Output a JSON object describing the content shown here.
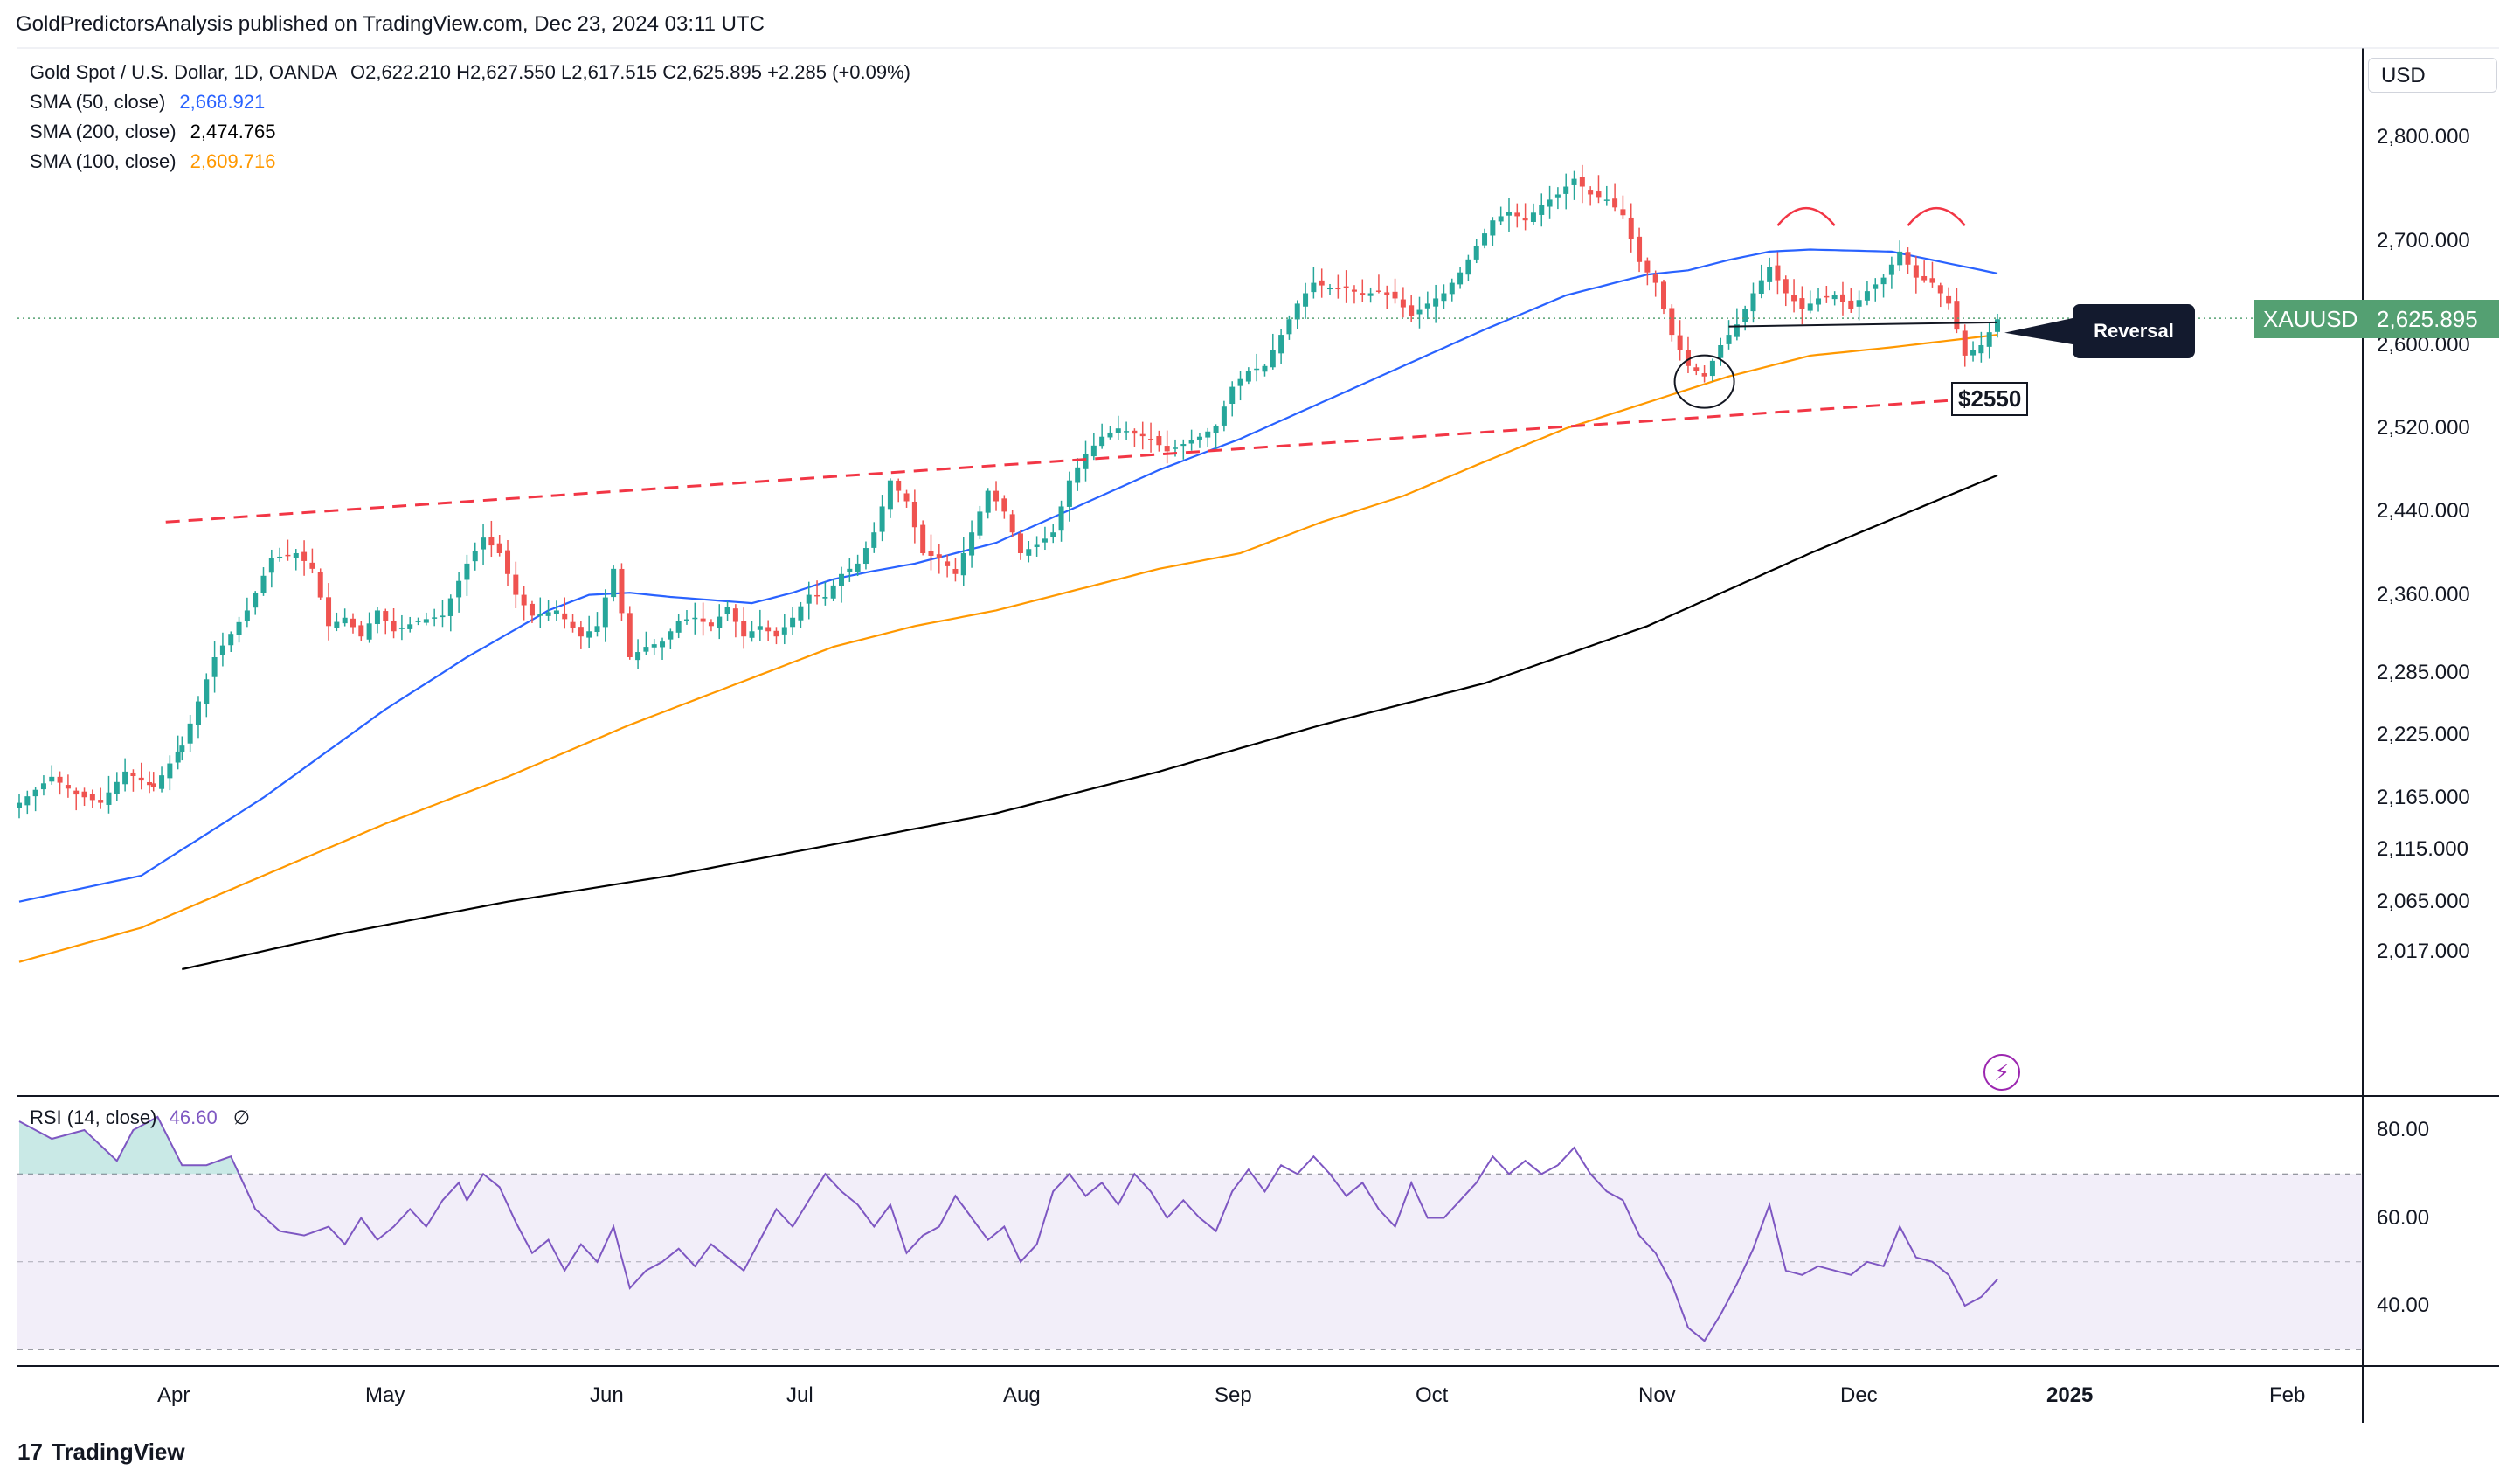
{
  "header": {
    "text": "GoldPredictorsAnalysis published on TradingView.com, Dec 23, 2024 03:11 UTC"
  },
  "footer": {
    "brand": "TradingView",
    "logo": "17"
  },
  "legend": {
    "symbol_line": "Gold Spot / U.S. Dollar, 1D, OANDA",
    "ohlc": "O2,622.210  H2,627.550  L2,617.515  C2,625.895  +2.285 (+0.09%)",
    "sma50_label": "SMA (50, close)",
    "sma50_value": "2,668.921",
    "sma200_label": "SMA (200, close)",
    "sma200_value": "2,474.765",
    "sma100_label": "SMA (100, close)",
    "sma100_value": "2,609.716"
  },
  "currency": "USD",
  "price_tag": {
    "symbol": "XAUUSD",
    "value": "2,625.895"
  },
  "annotations": {
    "reversal": "Reversal",
    "support": "$2550"
  },
  "rsi": {
    "label": "RSI (14, close)",
    "value": "46.60",
    "extra": "∅"
  },
  "colors": {
    "up": "#26a69a",
    "down": "#ef5350",
    "sma50": "#2962ff",
    "sma100": "#ff9800",
    "sma200": "#000000",
    "rsi": "#7e57c2",
    "trend": "#f23645"
  },
  "chart_data": {
    "type": "candlestick",
    "title": "Gold Spot / U.S. Dollar, 1D, OANDA",
    "price_axis": {
      "ticks": [
        "2,800.000",
        "2,700.000",
        "2,600.000",
        "2,520.000",
        "2,440.000",
        "2,360.000",
        "2,285.000",
        "2,225.000",
        "2,165.000",
        "2,115.000",
        "2,065.000",
        "2,017.000"
      ],
      "tick_values": [
        2800,
        2700,
        2600,
        2520,
        2440,
        2360,
        2285,
        2225,
        2165,
        2115,
        2065,
        2017
      ]
    },
    "time_axis": {
      "ticks": [
        "Apr",
        "May",
        "Jun",
        "Jul",
        "Aug",
        "Sep",
        "Oct",
        "Nov",
        "Dec",
        "2025",
        "Feb"
      ]
    },
    "rsi_axis": {
      "ticks": [
        "80.00",
        "60.00",
        "40.00"
      ],
      "tick_values": [
        80,
        60,
        40
      ],
      "band": [
        30,
        70
      ],
      "mid": 50
    },
    "close_anchors": [
      [
        0,
        2160
      ],
      [
        8,
        2185
      ],
      [
        14,
        2168
      ],
      [
        20,
        2160
      ],
      [
        26,
        2190
      ],
      [
        33,
        2175
      ],
      [
        40,
        2215
      ],
      [
        48,
        2300
      ],
      [
        56,
        2345
      ],
      [
        62,
        2395
      ],
      [
        68,
        2400
      ],
      [
        72,
        2385
      ],
      [
        76,
        2330
      ],
      [
        80,
        2338
      ],
      [
        84,
        2320
      ],
      [
        88,
        2345
      ],
      [
        92,
        2325
      ],
      [
        98,
        2335
      ],
      [
        104,
        2340
      ],
      [
        110,
        2390
      ],
      [
        114,
        2415
      ],
      [
        118,
        2400
      ],
      [
        122,
        2360
      ],
      [
        126,
        2340
      ],
      [
        132,
        2345
      ],
      [
        138,
        2320
      ],
      [
        142,
        2330
      ],
      [
        146,
        2385
      ],
      [
        150,
        2300
      ],
      [
        154,
        2310
      ],
      [
        158,
        2315
      ],
      [
        162,
        2335
      ],
      [
        166,
        2338
      ],
      [
        170,
        2330
      ],
      [
        174,
        2348
      ],
      [
        178,
        2320
      ],
      [
        182,
        2330
      ],
      [
        186,
        2320
      ],
      [
        190,
        2338
      ],
      [
        194,
        2360
      ],
      [
        198,
        2358
      ],
      [
        202,
        2380
      ],
      [
        206,
        2390
      ],
      [
        210,
        2420
      ],
      [
        214,
        2470
      ],
      [
        218,
        2450
      ],
      [
        222,
        2400
      ],
      [
        226,
        2395
      ],
      [
        230,
        2380
      ],
      [
        234,
        2420
      ],
      [
        238,
        2460
      ],
      [
        242,
        2440
      ],
      [
        246,
        2400
      ],
      [
        250,
        2408
      ],
      [
        254,
        2420
      ],
      [
        258,
        2470
      ],
      [
        262,
        2495
      ],
      [
        266,
        2512
      ],
      [
        270,
        2520
      ],
      [
        274,
        2515
      ],
      [
        278,
        2510
      ],
      [
        282,
        2498
      ],
      [
        286,
        2505
      ],
      [
        290,
        2512
      ],
      [
        294,
        2522
      ],
      [
        298,
        2560
      ],
      [
        302,
        2575
      ],
      [
        306,
        2580
      ],
      [
        310,
        2610
      ],
      [
        314,
        2640
      ],
      [
        318,
        2660
      ],
      [
        322,
        2655
      ],
      [
        326,
        2655
      ],
      [
        330,
        2648
      ],
      [
        334,
        2652
      ],
      [
        338,
        2645
      ],
      [
        342,
        2628
      ],
      [
        346,
        2640
      ],
      [
        350,
        2650
      ],
      [
        354,
        2670
      ],
      [
        358,
        2695
      ],
      [
        362,
        2720
      ],
      [
        366,
        2728
      ],
      [
        370,
        2720
      ],
      [
        374,
        2735
      ],
      [
        378,
        2745
      ],
      [
        382,
        2760
      ],
      [
        386,
        2745
      ],
      [
        390,
        2740
      ],
      [
        394,
        2725
      ],
      [
        398,
        2680
      ],
      [
        402,
        2660
      ],
      [
        406,
        2610
      ],
      [
        410,
        2580
      ],
      [
        414,
        2570
      ],
      [
        418,
        2600
      ],
      [
        422,
        2620
      ],
      [
        426,
        2650
      ],
      [
        430,
        2675
      ],
      [
        434,
        2650
      ],
      [
        438,
        2635
      ],
      [
        442,
        2645
      ],
      [
        446,
        2648
      ],
      [
        450,
        2635
      ],
      [
        454,
        2652
      ],
      [
        458,
        2665
      ],
      [
        462,
        2690
      ],
      [
        466,
        2665
      ],
      [
        470,
        2660
      ],
      [
        474,
        2640
      ],
      [
        478,
        2590
      ],
      [
        482,
        2600
      ],
      [
        486,
        2625
      ]
    ],
    "sma50_anchors": [
      [
        0,
        2065
      ],
      [
        30,
        2090
      ],
      [
        60,
        2165
      ],
      [
        90,
        2250
      ],
      [
        110,
        2300
      ],
      [
        130,
        2345
      ],
      [
        140,
        2360
      ],
      [
        150,
        2362
      ],
      [
        160,
        2358
      ],
      [
        170,
        2355
      ],
      [
        180,
        2352
      ],
      [
        190,
        2362
      ],
      [
        200,
        2375
      ],
      [
        210,
        2383
      ],
      [
        220,
        2390
      ],
      [
        230,
        2400
      ],
      [
        240,
        2410
      ],
      [
        260,
        2445
      ],
      [
        280,
        2480
      ],
      [
        300,
        2510
      ],
      [
        320,
        2545
      ],
      [
        340,
        2580
      ],
      [
        360,
        2615
      ],
      [
        380,
        2648
      ],
      [
        400,
        2668
      ],
      [
        410,
        2672
      ],
      [
        420,
        2682
      ],
      [
        430,
        2690
      ],
      [
        440,
        2692
      ],
      [
        460,
        2690
      ],
      [
        486,
        2669
      ]
    ],
    "sma100_anchors": [
      [
        0,
        2007
      ],
      [
        30,
        2040
      ],
      [
        60,
        2090
      ],
      [
        90,
        2140
      ],
      [
        120,
        2185
      ],
      [
        150,
        2235
      ],
      [
        180,
        2280
      ],
      [
        200,
        2310
      ],
      [
        220,
        2330
      ],
      [
        240,
        2345
      ],
      [
        260,
        2365
      ],
      [
        280,
        2385
      ],
      [
        300,
        2400
      ],
      [
        320,
        2430
      ],
      [
        340,
        2455
      ],
      [
        360,
        2488
      ],
      [
        380,
        2520
      ],
      [
        400,
        2545
      ],
      [
        420,
        2570
      ],
      [
        440,
        2590
      ],
      [
        460,
        2598
      ],
      [
        486,
        2610
      ]
    ],
    "sma200_anchors": [
      [
        40,
        2000
      ],
      [
        80,
        2035
      ],
      [
        120,
        2065
      ],
      [
        160,
        2090
      ],
      [
        200,
        2120
      ],
      [
        240,
        2150
      ],
      [
        280,
        2190
      ],
      [
        320,
        2235
      ],
      [
        360,
        2275
      ],
      [
        400,
        2330
      ],
      [
        440,
        2400
      ],
      [
        486,
        2475
      ]
    ],
    "rsi_anchors": [
      [
        0,
        82
      ],
      [
        8,
        78
      ],
      [
        16,
        80
      ],
      [
        24,
        73
      ],
      [
        28,
        80
      ],
      [
        34,
        83
      ],
      [
        40,
        72
      ],
      [
        46,
        72
      ],
      [
        52,
        74
      ],
      [
        58,
        62
      ],
      [
        64,
        57
      ],
      [
        70,
        56
      ],
      [
        76,
        58
      ],
      [
        80,
        54
      ],
      [
        84,
        60
      ],
      [
        88,
        55
      ],
      [
        92,
        58
      ],
      [
        96,
        62
      ],
      [
        100,
        58
      ],
      [
        104,
        64
      ],
      [
        108,
        68
      ],
      [
        110,
        64
      ],
      [
        114,
        70
      ],
      [
        118,
        67
      ],
      [
        122,
        59
      ],
      [
        126,
        52
      ],
      [
        130,
        55
      ],
      [
        134,
        48
      ],
      [
        138,
        54
      ],
      [
        142,
        50
      ],
      [
        146,
        58
      ],
      [
        150,
        44
      ],
      [
        154,
        48
      ],
      [
        158,
        50
      ],
      [
        162,
        53
      ],
      [
        166,
        49
      ],
      [
        170,
        54
      ],
      [
        174,
        51
      ],
      [
        178,
        48
      ],
      [
        182,
        55
      ],
      [
        186,
        62
      ],
      [
        190,
        58
      ],
      [
        194,
        64
      ],
      [
        198,
        70
      ],
      [
        202,
        66
      ],
      [
        206,
        63
      ],
      [
        210,
        58
      ],
      [
        214,
        63
      ],
      [
        218,
        52
      ],
      [
        222,
        56
      ],
      [
        226,
        58
      ],
      [
        230,
        65
      ],
      [
        234,
        60
      ],
      [
        238,
        55
      ],
      [
        242,
        58
      ],
      [
        246,
        50
      ],
      [
        250,
        54
      ],
      [
        254,
        66
      ],
      [
        258,
        70
      ],
      [
        262,
        65
      ],
      [
        266,
        68
      ],
      [
        270,
        63
      ],
      [
        274,
        70
      ],
      [
        278,
        66
      ],
      [
        282,
        60
      ],
      [
        286,
        64
      ],
      [
        290,
        60
      ],
      [
        294,
        57
      ],
      [
        298,
        66
      ],
      [
        302,
        71
      ],
      [
        306,
        66
      ],
      [
        310,
        72
      ],
      [
        314,
        70
      ],
      [
        318,
        74
      ],
      [
        322,
        70
      ],
      [
        326,
        65
      ],
      [
        330,
        68
      ],
      [
        334,
        62
      ],
      [
        338,
        58
      ],
      [
        342,
        68
      ],
      [
        346,
        60
      ],
      [
        350,
        60
      ],
      [
        354,
        64
      ],
      [
        358,
        68
      ],
      [
        362,
        74
      ],
      [
        366,
        70
      ],
      [
        370,
        73
      ],
      [
        374,
        70
      ],
      [
        378,
        72
      ],
      [
        382,
        76
      ],
      [
        386,
        70
      ],
      [
        390,
        66
      ],
      [
        394,
        64
      ],
      [
        398,
        56
      ],
      [
        402,
        52
      ],
      [
        406,
        45
      ],
      [
        410,
        35
      ],
      [
        414,
        32
      ],
      [
        418,
        38
      ],
      [
        422,
        45
      ],
      [
        426,
        53
      ],
      [
        430,
        63
      ],
      [
        434,
        48
      ],
      [
        438,
        47
      ],
      [
        442,
        49
      ],
      [
        446,
        48
      ],
      [
        450,
        47
      ],
      [
        454,
        50
      ],
      [
        458,
        49
      ],
      [
        462,
        58
      ],
      [
        466,
        51
      ],
      [
        470,
        50
      ],
      [
        474,
        47
      ],
      [
        478,
        40
      ],
      [
        482,
        42
      ],
      [
        486,
        46
      ]
    ],
    "trendline_start": [
      36,
      2430
    ],
    "trendline_end": [
      486,
      2550
    ],
    "neckline": [
      [
        420,
        2618
      ],
      [
        486,
        2622
      ]
    ]
  }
}
